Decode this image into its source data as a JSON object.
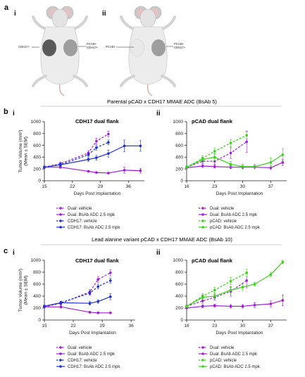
{
  "figure": {
    "panel_a_label": "a",
    "panel_b_label": "b",
    "panel_c_label": "c",
    "sub_i": "i",
    "sub_ii": "ii",
    "mouse_i_left_label": "CDH17+",
    "mouse_i_right_label": "PCAD+\nCDH17+",
    "mouse_ii_left_label": "PCAD+",
    "mouse_ii_right_label": "PCAD+\nCDH17+",
    "section_b_title": "Parental pCAD x CDH17 MMAE ADC (BsAb 5)",
    "section_c_title": "Lead alanine variant pCAD x CDH17 MMAE ADC (BsAb 10)"
  },
  "colors": {
    "magenta": "#a020d0",
    "blue": "#1f2fd0",
    "green": "#3ecf1f",
    "axis": "#222222",
    "divider": "#999999"
  },
  "chart_data": [
    {
      "id": "b-i",
      "type": "line",
      "title": "CDH17 dual flank",
      "xlabel": "Days Post Implantation",
      "ylabel": "Tumor Volume (mm³)\n(Mean ± SEM)",
      "xlim": [
        15,
        40
      ],
      "ylim": [
        0,
        1000
      ],
      "xticks": [
        15,
        22,
        29,
        36
      ],
      "yticks": [
        0,
        200,
        400,
        600,
        800,
        1000
      ],
      "legend_position": "bottom",
      "series": [
        {
          "name": "Dual: vehicle",
          "color": "magenta",
          "dashed": true,
          "x": [
            15,
            19,
            26,
            28,
            31
          ],
          "y": [
            230,
            290,
            470,
            670,
            790
          ],
          "err": [
            20,
            30,
            40,
            50,
            50
          ]
        },
        {
          "name": "Dual: BsAb  ADC 2.5 mpk",
          "color": "magenta",
          "dashed": false,
          "x": [
            15,
            19,
            26,
            28,
            31,
            35,
            39
          ],
          "y": [
            230,
            230,
            160,
            140,
            130,
            180,
            170
          ],
          "err": [
            15,
            20,
            15,
            15,
            15,
            50,
            40
          ]
        },
        {
          "name": "CDH17: vehicle",
          "color": "blue",
          "dashed": true,
          "x": [
            15,
            19,
            26,
            28,
            31
          ],
          "y": [
            230,
            270,
            440,
            560,
            650
          ],
          "err": [
            20,
            25,
            35,
            40,
            40
          ]
        },
        {
          "name": "CDH17:  BsAb  ADC 2.5 mpk",
          "color": "blue",
          "dashed": false,
          "x": [
            15,
            19,
            26,
            28,
            31,
            35,
            39
          ],
          "y": [
            230,
            270,
            360,
            390,
            460,
            590,
            590
          ],
          "err": [
            20,
            25,
            30,
            40,
            60,
            100,
            90
          ]
        }
      ]
    },
    {
      "id": "b-ii",
      "type": "line",
      "title": "pCAD dual flank",
      "xlabel": "Days Post Implantation",
      "ylabel": "",
      "xlim": [
        16,
        41
      ],
      "ylim": [
        0,
        1000
      ],
      "xticks": [
        16,
        23,
        30,
        37
      ],
      "yticks": [
        0,
        200,
        400,
        600,
        800,
        1000
      ],
      "legend_position": "bottom",
      "series": [
        {
          "name": "Dual: vehicle",
          "color": "magenta",
          "dashed": true,
          "x": [
            16,
            20,
            23,
            27,
            31
          ],
          "y": [
            230,
            330,
            330,
            470,
            660
          ],
          "err": [
            20,
            40,
            50,
            90,
            180
          ]
        },
        {
          "name": "Dual: BsAb  ADC 2.5 mpk",
          "color": "magenta",
          "dashed": false,
          "x": [
            16,
            20,
            23,
            27,
            30,
            33,
            37,
            40
          ],
          "y": [
            220,
            250,
            240,
            230,
            230,
            230,
            220,
            310
          ],
          "err": [
            15,
            25,
            25,
            25,
            25,
            30,
            30,
            50
          ]
        },
        {
          "name": "pCAD: vehicle",
          "color": "green",
          "dashed": true,
          "x": [
            16,
            20,
            23,
            27,
            31
          ],
          "y": [
            230,
            380,
            500,
            640,
            770
          ],
          "err": [
            20,
            40,
            50,
            60,
            60
          ]
        },
        {
          "name": "pCAD: BsAb  ADC 2.5 mpk",
          "color": "green",
          "dashed": false,
          "x": [
            16,
            20,
            23,
            27,
            30,
            33,
            37,
            40
          ],
          "y": [
            230,
            360,
            400,
            280,
            240,
            240,
            310,
            440
          ],
          "err": [
            20,
            40,
            60,
            50,
            40,
            40,
            80,
            100
          ]
        }
      ]
    },
    {
      "id": "c-i",
      "type": "line",
      "title": "CDH17 dual flank",
      "xlabel": "Days Post Implantation",
      "ylabel": "Tumor Volume (mm³)\n(Mean ± SEM)",
      "xlim": [
        15,
        37
      ],
      "ylim": [
        0,
        1000
      ],
      "xticks": [
        15,
        22,
        29,
        36
      ],
      "yticks": [
        0,
        200,
        400,
        600,
        800,
        1000
      ],
      "legend_position": "bottom",
      "series": [
        {
          "name": "Dual: vehicle",
          "color": "magenta",
          "dashed": true,
          "x": [
            15,
            19,
            26,
            28,
            31
          ],
          "y": [
            220,
            280,
            470,
            680,
            790
          ],
          "err": [
            20,
            30,
            40,
            50,
            50
          ]
        },
        {
          "name": "Dual: BsAb  ADC 2.5 mpk",
          "color": "magenta",
          "dashed": false,
          "x": [
            15,
            19,
            26,
            28,
            31
          ],
          "y": [
            220,
            220,
            130,
            120,
            120
          ],
          "err": [
            15,
            20,
            15,
            15,
            15
          ]
        },
        {
          "name": "CDH17: vehicle",
          "color": "blue",
          "dashed": true,
          "x": [
            15,
            19,
            26,
            28,
            31
          ],
          "y": [
            230,
            290,
            450,
            560,
            660
          ],
          "err": [
            20,
            25,
            35,
            40,
            40
          ]
        },
        {
          "name": "CDH17:  BsAb  ADC 2.5 mpk",
          "color": "blue",
          "dashed": false,
          "x": [
            15,
            19,
            26,
            28,
            31
          ],
          "y": [
            230,
            290,
            280,
            310,
            390
          ],
          "err": [
            20,
            25,
            30,
            30,
            50
          ]
        }
      ]
    },
    {
      "id": "c-ii",
      "type": "line",
      "title": "pCAD dual flank",
      "xlabel": "Days Post Implantation",
      "ylabel": "",
      "xlim": [
        16,
        41
      ],
      "ylim": [
        0,
        1000
      ],
      "xticks": [
        16,
        23,
        30,
        37
      ],
      "yticks": [
        0,
        200,
        400,
        600,
        800,
        1000
      ],
      "legend_position": "bottom",
      "series": [
        {
          "name": "Dual: vehicle",
          "color": "magenta",
          "dashed": true,
          "x": [
            16,
            20,
            23,
            27,
            31
          ],
          "y": [
            230,
            320,
            380,
            480,
            660
          ],
          "err": [
            20,
            40,
            50,
            80,
            120
          ]
        },
        {
          "name": "Dual: BsAb  ADC 2.5 mpk",
          "color": "magenta",
          "dashed": false,
          "x": [
            16,
            20,
            23,
            27,
            30,
            33,
            37,
            40
          ],
          "y": [
            200,
            230,
            240,
            230,
            230,
            250,
            270,
            330
          ],
          "err": [
            15,
            25,
            25,
            30,
            30,
            40,
            50,
            90
          ]
        },
        {
          "name": "pCAD: vehicle",
          "color": "green",
          "dashed": true,
          "x": [
            16,
            20,
            23,
            27,
            31
          ],
          "y": [
            230,
            400,
            500,
            650,
            790
          ],
          "err": [
            20,
            40,
            50,
            60,
            60
          ]
        },
        {
          "name": "pCAD: BsAb  ADC 2.5 mpk",
          "color": "green",
          "dashed": false,
          "x": [
            16,
            20,
            23,
            27,
            30,
            33,
            37,
            40
          ],
          "y": [
            230,
            380,
            400,
            500,
            550,
            600,
            760,
            970
          ],
          "err": [
            20,
            40,
            50,
            50,
            50,
            30,
            40,
            30
          ]
        }
      ]
    }
  ]
}
